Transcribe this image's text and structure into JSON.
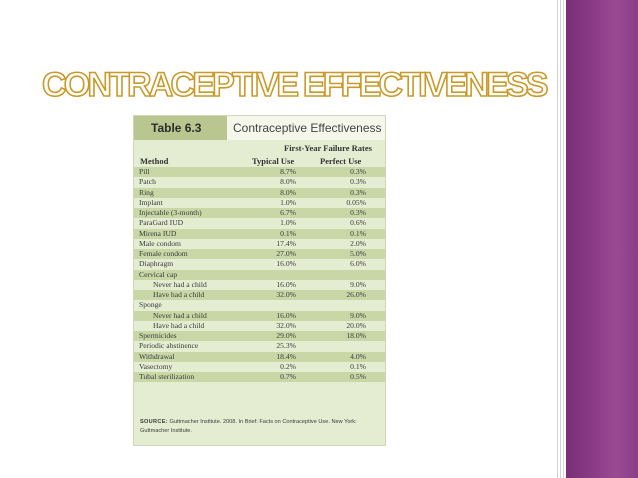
{
  "slide": {
    "title": "CONTRACEPTIVE EFFECTIVENESS",
    "colors": {
      "title_fill": "#ffffff",
      "title_stroke": "#c99a2a",
      "band": "#8a3a84"
    }
  },
  "table": {
    "tag": "Table 6.3",
    "title": "Contraceptive Effectiveness",
    "header_failure": "First-Year Failure Rates",
    "header_method": "Method",
    "header_typical": "Typical Use",
    "header_perfect": "Perfect Use",
    "rows": [
      {
        "method": "Pill",
        "typical": "8.7%",
        "perfect": "0.3%"
      },
      {
        "method": "Patch",
        "typical": "8.0%",
        "perfect": "0.3%"
      },
      {
        "method": "Ring",
        "typical": "8.0%",
        "perfect": "0.3%"
      },
      {
        "method": "Implant",
        "typical": "1.0%",
        "perfect": "0.05%"
      },
      {
        "method": "Injectable (3-month)",
        "typical": "6.7%",
        "perfect": "0.3%"
      },
      {
        "method": "ParaGard IUD",
        "typical": "1.0%",
        "perfect": "0.6%"
      },
      {
        "method": "Mirena IUD",
        "typical": "0.1%",
        "perfect": "0.1%"
      },
      {
        "method": "Male condom",
        "typical": "17.4%",
        "perfect": "2.0%"
      },
      {
        "method": "Female condom",
        "typical": "27.0%",
        "perfect": "5.0%"
      },
      {
        "method": "Diaphragm",
        "typical": "16.0%",
        "perfect": "6.0%"
      },
      {
        "method": "Cervical cap",
        "typical": "",
        "perfect": ""
      },
      {
        "method": "Never had a child",
        "typical": "16.0%",
        "perfect": "9.0%",
        "sub": true
      },
      {
        "method": "Have had a child",
        "typical": "32.0%",
        "perfect": "26.0%",
        "sub": true
      },
      {
        "method": "Sponge",
        "typical": "",
        "perfect": ""
      },
      {
        "method": "Never had a child",
        "typical": "16.0%",
        "perfect": "9.0%",
        "sub": true
      },
      {
        "method": "Have had a child",
        "typical": "32.0%",
        "perfect": "20.0%",
        "sub": true
      },
      {
        "method": "Spermicides",
        "typical": "29.0%",
        "perfect": "18.0%"
      },
      {
        "method": "Periodic abstinence",
        "typical": "25.3%",
        "perfect": ""
      },
      {
        "method": "Withdrawal",
        "typical": "18.4%",
        "perfect": "4.0%"
      },
      {
        "method": "Vasectomy",
        "typical": "0.2%",
        "perfect": "0.1%"
      },
      {
        "method": "Tubal sterilization",
        "typical": "0.7%",
        "perfect": "0.5%"
      }
    ],
    "source_label": "SOURCE:",
    "source_text": "Guttmacher Institute. 2008. In Brief: Facts on Contraceptive Use. New York: Guttmacher Institute."
  }
}
